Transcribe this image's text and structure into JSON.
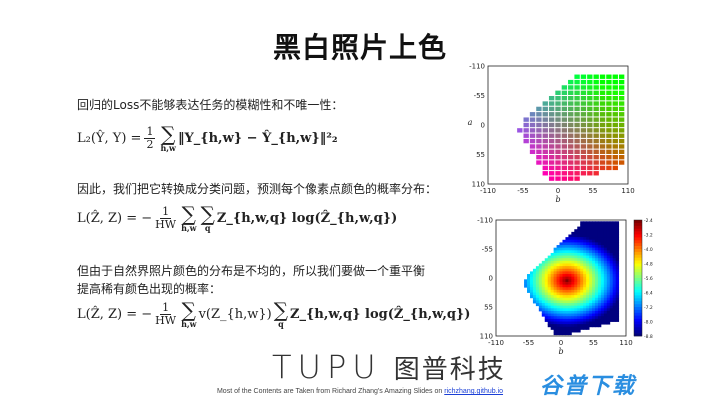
{
  "title": "黑白照片上色",
  "paragraphs": {
    "p1": "回归的Loss不能够表达任务的模糊性和不唯一性：",
    "p2": "因此，我们把它转换成分类问题，预测每个像素点颜色的概率分布：",
    "p3_line1": "但由于自然界照片颜色的分布是不均的，所以我们要做一个重平衡",
    "p3_line2": "提高稀有颜色出现的概率："
  },
  "formulas": {
    "f1_lhs": "L₂(Ŷ, Y) =",
    "f1_frac_num": "1",
    "f1_frac_den": "2",
    "f1_sum_sub": "h,w",
    "f1_rhs": "‖Y_{h,w} − Ŷ_{h,w}‖²₂",
    "f2_lhs": "L(Ẑ, Z) = −",
    "f2_frac_num": "1",
    "f2_frac_den": "HW",
    "f2_sum1_sub": "h,w",
    "f2_sum2_sub": "q",
    "f2_rhs": "Z_{h,w,q} log(Ẑ_{h,w,q})",
    "f3_lhs": "L(Ẑ, Z) = −",
    "f3_frac_num": "1",
    "f3_frac_den": "HW",
    "f3_sum1_sub": "h,w",
    "f3_mid": "v(Z_{h,w})",
    "f3_sum2_sub": "q",
    "f3_rhs": "Z_{h,w,q} log(Ẑ_{h,w,q})"
  },
  "chart_data": [
    {
      "type": "heatmap",
      "description_of_content": "ab color gamut grid",
      "xlabel": "b",
      "ylabel": "a",
      "xticks": [
        "-110",
        "-55",
        "0",
        "55",
        "110"
      ],
      "yticks": [
        "-110",
        "-55",
        "0",
        "55",
        "110"
      ],
      "xlim": [
        -110,
        110
      ],
      "ylim": [
        -110,
        110
      ]
    },
    {
      "type": "heatmap",
      "xlabel": "b",
      "ylabel": "",
      "xticks": [
        "-110",
        "-55",
        "0",
        "55",
        "110"
      ],
      "yticks": [
        "-110",
        "-55",
        "0",
        "55",
        "110"
      ],
      "xlim": [
        -110,
        110
      ],
      "ylim": [
        -110,
        110
      ],
      "colorbar_ticks": [
        "-2.4",
        "-3.2",
        "-4.0",
        "-4.8",
        "-5.6",
        "-6.4",
        "-7.2",
        "-8.0",
        "-8.8"
      ],
      "colorbar_range": [
        -8.8,
        -2.4
      ]
    }
  ],
  "logo": {
    "en": "TUPU",
    "cn": "图普科技"
  },
  "footnote": {
    "text": "Most of the Contents are Taken from Richard Zhang's Amazing Slides on ",
    "link": "richzhang.github.io"
  },
  "watermark": "谷普下载",
  "colors": {
    "accent_link": "#1a3fd6",
    "watermark": "#2a8ee0"
  }
}
